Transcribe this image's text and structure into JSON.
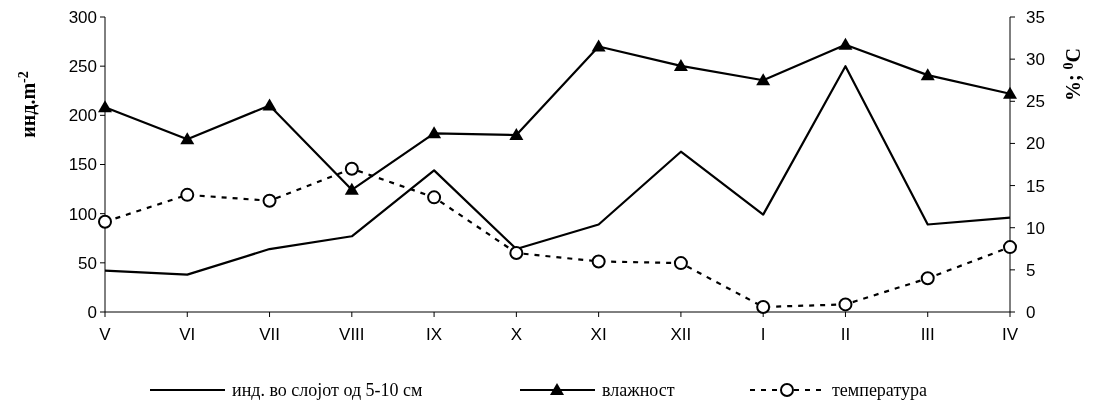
{
  "chart_data": {
    "type": "line",
    "categories": [
      "V",
      "VI",
      "VII",
      "VIII",
      "IX",
      "X",
      "XI",
      "XII",
      "I",
      "II",
      "III",
      "IV"
    ],
    "ylabel": "инд.m$^{-2}$",
    "y2label": "%; $^{0}$C",
    "ylim": [
      0,
      300
    ],
    "yticks": [
      0,
      50,
      100,
      150,
      200,
      250,
      300
    ],
    "y2lim": [
      0,
      35
    ],
    "y2ticks": [
      0,
      5,
      10,
      15,
      20,
      25,
      30,
      35
    ],
    "legend": "bottom",
    "grid": false,
    "series": [
      {
        "name": "инд. во слојот од 5-10 см",
        "color": "#000000",
        "marker": "none",
        "line_style": "solid",
        "values": [
          42,
          38,
          64,
          77,
          144,
          64,
          89,
          163,
          99,
          250,
          89,
          96
        ]
      },
      {
        "name": "влажност",
        "color": "#000000",
        "marker": "triangle",
        "line_style": "solid",
        "axis": "y2",
        "values": [
          24.3,
          20.5,
          24.5,
          14.5,
          21.2,
          21,
          31.5,
          29.2,
          27.5,
          31.7,
          28.1,
          25.9
        ]
      },
      {
        "name": "температура",
        "color": "#000000",
        "marker": "circle",
        "line_style": "dashed",
        "axis": "y2",
        "values": [
          10.7,
          13.9,
          13.2,
          17,
          13.6,
          7,
          6,
          5.8,
          0.6,
          0.9,
          4,
          7.7
        ]
      }
    ]
  }
}
